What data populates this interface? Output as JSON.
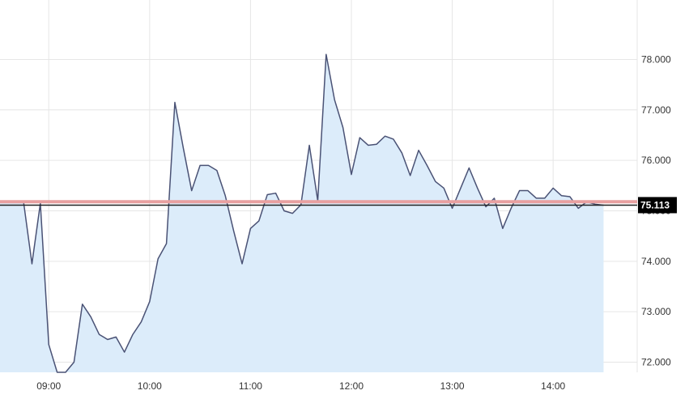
{
  "colors": {
    "background": "#ffffff",
    "grid": "#e6e6e6",
    "line": "#4a5275",
    "area": "#dcecfa",
    "reference_line": "#e8a0a0",
    "price_label_bg": "#000000",
    "price_label_text": "#ffffff",
    "tick_text": "#333333"
  },
  "chart_data": {
    "type": "area",
    "current_value_label": "75.113",
    "reference_value": 75.18,
    "current_value": 75.113,
    "x_ticks": [
      "09:00",
      "10:00",
      "11:00",
      "12:00",
      "13:00",
      "14:00"
    ],
    "y_ticks": [
      "72.000",
      "73.000",
      "74.000",
      "75.000",
      "76.000",
      "77.000",
      "78.000"
    ],
    "y_tick_values": [
      72,
      73,
      74,
      75,
      76,
      77,
      78
    ],
    "xlim": [
      "08:31",
      "14:50"
    ],
    "ylim": [
      71.8,
      79.05
    ],
    "grid": true,
    "series": [
      {
        "x": [
          "08:31",
          "08:45",
          "08:50",
          "08:55",
          "09:00",
          "09:05",
          "09:10",
          "09:15",
          "09:20",
          "09:25",
          "09:30",
          "09:35",
          "09:40",
          "09:45",
          "09:50",
          "09:55",
          "10:00",
          "10:05",
          "10:10",
          "10:15",
          "10:20",
          "10:25",
          "10:30",
          "10:35",
          "10:40",
          "10:45",
          "10:50",
          "10:55",
          "11:00",
          "11:05",
          "11:10",
          "11:15",
          "11:20",
          "11:25",
          "11:30",
          "11:35",
          "11:40",
          "11:45",
          "11:50",
          "11:55",
          "12:00",
          "12:05",
          "12:10",
          "12:15",
          "12:20",
          "12:25",
          "12:30",
          "12:35",
          "12:40",
          "12:45",
          "12:50",
          "12:55",
          "13:00",
          "13:05",
          "13:10",
          "13:15",
          "13:20",
          "13:25",
          "13:30",
          "13:35",
          "13:40",
          "13:45",
          "13:50",
          "13:55",
          "14:00",
          "14:05",
          "14:10",
          "14:15",
          "14:20",
          "14:25",
          "14:30"
        ],
        "values": [
          75.18,
          75.18,
          73.95,
          75.15,
          72.35,
          71.8,
          71.8,
          72.0,
          73.15,
          72.9,
          72.55,
          72.45,
          72.5,
          72.2,
          72.55,
          72.8,
          73.2,
          74.05,
          74.35,
          77.15,
          76.25,
          75.4,
          75.9,
          75.9,
          75.8,
          75.3,
          74.6,
          73.95,
          74.65,
          74.8,
          75.32,
          75.35,
          75.0,
          74.95,
          75.12,
          76.3,
          75.2,
          78.1,
          77.2,
          76.65,
          75.72,
          76.45,
          76.3,
          76.32,
          76.48,
          76.42,
          76.15,
          75.7,
          76.2,
          75.9,
          75.58,
          75.45,
          75.05,
          75.45,
          75.85,
          75.45,
          75.08,
          75.25,
          74.65,
          75.05,
          75.4,
          75.4,
          75.25,
          75.25,
          75.45,
          75.3,
          75.28,
          75.05,
          75.18,
          75.13,
          75.113
        ]
      }
    ]
  }
}
